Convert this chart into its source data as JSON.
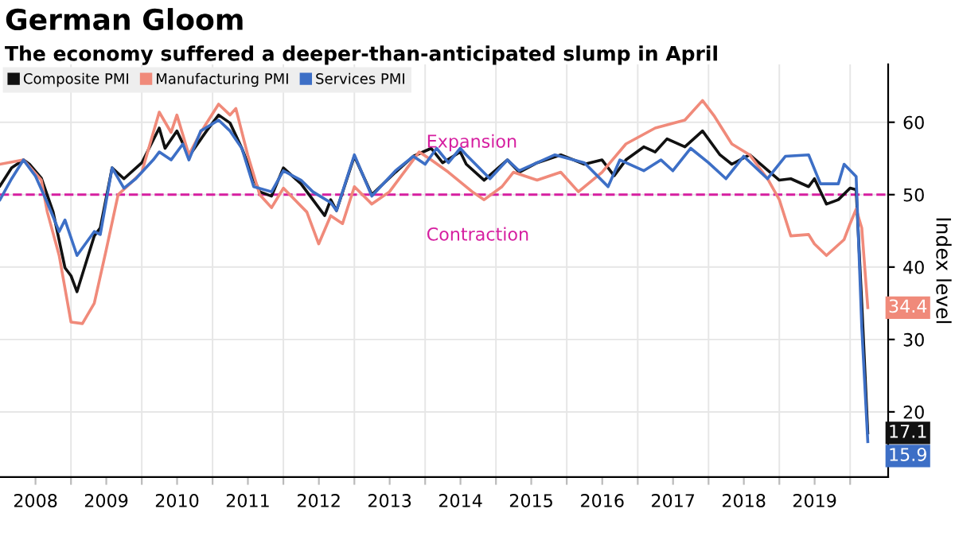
{
  "chart_data": {
    "type": "line",
    "title": "German Gloom",
    "subtitle": "The economy suffered a deeper-than-anticipated slump in April",
    "ylabel": "Index level",
    "series": [
      {
        "name": "Composite PMI",
        "color": "#111111",
        "x": [
          "2008-01",
          "2008-03",
          "2008-05",
          "2008-06",
          "2008-08",
          "2008-10",
          "2008-12",
          "2009-01",
          "2009-02",
          "2009-05",
          "2009-06",
          "2009-08",
          "2009-10",
          "2010-01",
          "2010-04",
          "2010-05",
          "2010-07",
          "2010-09",
          "2010-12",
          "2011-02",
          "2011-04",
          "2011-06",
          "2011-08",
          "2011-09",
          "2011-11",
          "2012-01",
          "2012-04",
          "2012-06",
          "2012-08",
          "2012-09",
          "2012-10",
          "2013-01",
          "2013-04",
          "2013-08",
          "2013-11",
          "2014-02",
          "2014-04",
          "2014-07",
          "2014-08",
          "2014-11",
          "2015-03",
          "2015-05",
          "2015-08",
          "2015-12",
          "2016-04",
          "2016-07",
          "2016-09",
          "2016-11",
          "2017-02",
          "2017-04",
          "2017-06",
          "2017-09",
          "2017-12",
          "2018-03",
          "2018-05",
          "2018-08",
          "2019-01",
          "2019-03",
          "2019-06",
          "2019-07",
          "2019-09",
          "2019-11",
          "2020-01",
          "2020-02",
          "2020-03",
          "2020-04"
        ],
        "values": [
          51.2,
          53.7,
          54.8,
          54.2,
          52.3,
          47.6,
          39.9,
          38.8,
          36.6,
          44.3,
          45.4,
          53.7,
          52.2,
          54.4,
          59.2,
          56.4,
          58.8,
          55.3,
          58.8,
          61.0,
          59.9,
          56.4,
          52.2,
          50.4,
          49.8,
          53.7,
          51.5,
          49.3,
          47.1,
          49.3,
          47.8,
          55.3,
          50.0,
          53.1,
          55.3,
          56.4,
          54.4,
          55.9,
          54.2,
          52.0,
          54.8,
          53.1,
          54.4,
          55.5,
          54.2,
          54.8,
          52.6,
          54.8,
          56.6,
          55.9,
          57.7,
          56.6,
          58.8,
          55.5,
          54.2,
          55.5,
          52.0,
          52.2,
          51.1,
          52.2,
          48.7,
          49.3,
          50.9,
          50.7,
          35.0,
          17.1
        ],
        "value_labels": [
          null,
          null,
          null,
          null,
          null,
          null,
          null,
          null,
          null,
          null,
          null,
          null,
          null,
          null,
          null,
          null,
          null,
          null,
          null,
          null,
          null,
          null,
          null,
          null,
          null,
          null,
          null,
          null,
          null,
          null,
          null,
          null,
          null,
          null,
          null,
          null,
          null,
          null,
          null,
          null,
          null,
          null,
          null,
          null,
          null,
          null,
          null,
          null,
          null,
          null,
          null,
          null,
          null,
          null,
          null,
          null,
          null,
          null,
          null,
          null,
          null,
          null,
          null,
          null,
          null,
          "17.1"
        ]
      },
      {
        "name": "Manufacturing PMI",
        "color": "#f08a7a",
        "x": [
          "2008-01",
          "2008-05",
          "2008-08",
          "2008-09",
          "2008-11",
          "2009-01",
          "2009-03",
          "2009-05",
          "2009-07",
          "2009-09",
          "2009-11",
          "2010-01",
          "2010-04",
          "2010-06",
          "2010-07",
          "2010-09",
          "2010-11",
          "2011-02",
          "2011-04",
          "2011-05",
          "2011-07",
          "2011-09",
          "2011-11",
          "2012-01",
          "2012-05",
          "2012-07",
          "2012-09",
          "2012-11",
          "2013-01",
          "2013-04",
          "2013-07",
          "2013-12",
          "2014-02",
          "2014-05",
          "2014-09",
          "2014-11",
          "2015-02",
          "2015-04",
          "2015-08",
          "2015-12",
          "2016-03",
          "2016-07",
          "2016-11",
          "2017-04",
          "2017-09",
          "2017-12",
          "2018-02",
          "2018-05",
          "2018-08",
          "2018-11",
          "2019-01",
          "2019-03",
          "2019-06",
          "2019-07",
          "2019-09",
          "2019-12",
          "2020-01",
          "2020-02",
          "2020-03",
          "2020-04"
        ],
        "values": [
          54.2,
          54.8,
          52.0,
          47.6,
          41.6,
          32.4,
          32.2,
          35.0,
          42.3,
          50.0,
          51.5,
          53.1,
          61.4,
          58.6,
          61.0,
          55.5,
          58.6,
          62.5,
          61.0,
          61.9,
          55.5,
          50.0,
          48.2,
          50.9,
          47.6,
          43.2,
          47.1,
          46.0,
          51.1,
          48.7,
          50.4,
          55.9,
          54.8,
          53.1,
          50.4,
          49.3,
          51.1,
          53.1,
          52.0,
          53.1,
          50.4,
          53.1,
          57.0,
          59.2,
          60.3,
          63.0,
          60.8,
          57.0,
          55.5,
          52.2,
          49.3,
          44.3,
          44.5,
          43.2,
          41.6,
          43.8,
          46.0,
          48.0,
          45.4,
          34.4
        ],
        "value_labels": [
          null,
          null,
          null,
          null,
          null,
          null,
          null,
          null,
          null,
          null,
          null,
          null,
          null,
          null,
          null,
          null,
          null,
          null,
          null,
          null,
          null,
          null,
          null,
          null,
          null,
          null,
          null,
          null,
          null,
          null,
          null,
          null,
          null,
          null,
          null,
          null,
          null,
          null,
          null,
          null,
          null,
          null,
          null,
          null,
          null,
          null,
          null,
          null,
          null,
          null,
          null,
          null,
          null,
          null,
          null,
          null,
          null,
          null,
          null,
          "34.4"
        ]
      },
      {
        "name": "Services PMI",
        "color": "#3d6fc6",
        "x": [
          "2008-01",
          "2008-03",
          "2008-05",
          "2008-07",
          "2008-09",
          "2008-11",
          "2008-12",
          "2009-02",
          "2009-05",
          "2009-06",
          "2009-08",
          "2009-10",
          "2009-12",
          "2010-03",
          "2010-04",
          "2010-06",
          "2010-08",
          "2010-09",
          "2010-11",
          "2011-02",
          "2011-04",
          "2011-06",
          "2011-08",
          "2011-11",
          "2012-01",
          "2012-04",
          "2012-06",
          "2012-09",
          "2012-10",
          "2013-01",
          "2013-04",
          "2013-08",
          "2013-11",
          "2014-01",
          "2014-03",
          "2014-05",
          "2014-07",
          "2014-08",
          "2014-12",
          "2015-03",
          "2015-05",
          "2015-11",
          "2016-04",
          "2016-08",
          "2016-10",
          "2017-02",
          "2017-05",
          "2017-07",
          "2017-10",
          "2018-01",
          "2018-04",
          "2018-07",
          "2018-11",
          "2019-02",
          "2019-06",
          "2019-08",
          "2019-11",
          "2019-12",
          "2020-02",
          "2020-03",
          "2020-04"
        ],
        "values": [
          49.3,
          52.2,
          54.8,
          52.6,
          48.9,
          44.9,
          46.5,
          41.6,
          44.9,
          44.5,
          53.7,
          50.9,
          52.2,
          54.8,
          55.9,
          54.8,
          57.0,
          54.8,
          58.8,
          60.3,
          58.8,
          56.4,
          51.1,
          50.4,
          53.3,
          52.0,
          50.4,
          48.9,
          47.8,
          55.5,
          49.8,
          53.3,
          55.3,
          54.2,
          56.4,
          54.4,
          56.4,
          55.5,
          52.2,
          54.8,
          53.3,
          55.5,
          54.4,
          51.1,
          54.8,
          53.3,
          54.8,
          53.3,
          56.4,
          54.4,
          52.2,
          55.3,
          52.2,
          55.3,
          55.5,
          51.5,
          51.5,
          54.2,
          52.5,
          31.7,
          15.9
        ],
        "value_labels": [
          null,
          null,
          null,
          null,
          null,
          null,
          null,
          null,
          null,
          null,
          null,
          null,
          null,
          null,
          null,
          null,
          null,
          null,
          null,
          null,
          null,
          null,
          null,
          null,
          null,
          null,
          null,
          null,
          null,
          null,
          null,
          null,
          null,
          null,
          null,
          null,
          null,
          null,
          null,
          null,
          null,
          null,
          null,
          null,
          null,
          null,
          null,
          null,
          null,
          null,
          null,
          null,
          null,
          null,
          null,
          null,
          null,
          null,
          null,
          null,
          "15.9"
        ]
      }
    ],
    "xlim": [
      "2008-01-01",
      "2020-07-15"
    ],
    "xticks": [
      {
        "value": "2008-07-02",
        "label": "2008"
      },
      {
        "value": "2009-01-01",
        "label": null
      },
      {
        "value": "2009-07-02",
        "label": "2009"
      },
      {
        "value": "2010-01-01",
        "label": null
      },
      {
        "value": "2010-07-02",
        "label": "2010"
      },
      {
        "value": "2011-01-01",
        "label": null
      },
      {
        "value": "2011-07-02",
        "label": "2011"
      },
      {
        "value": "2012-01-01",
        "label": null
      },
      {
        "value": "2012-07-02",
        "label": "2012"
      },
      {
        "value": "2013-01-01",
        "label": null
      },
      {
        "value": "2013-07-02",
        "label": "2013"
      },
      {
        "value": "2014-01-01",
        "label": null
      },
      {
        "value": "2014-07-02",
        "label": "2014"
      },
      {
        "value": "2015-01-01",
        "label": null
      },
      {
        "value": "2015-07-02",
        "label": "2015"
      },
      {
        "value": "2016-01-01",
        "label": null
      },
      {
        "value": "2016-07-02",
        "label": "2016"
      },
      {
        "value": "2017-01-01",
        "label": null
      },
      {
        "value": "2017-07-02",
        "label": "2017"
      },
      {
        "value": "2018-01-01",
        "label": null
      },
      {
        "value": "2018-07-02",
        "label": "2018"
      },
      {
        "value": "2019-01-01",
        "label": null
      },
      {
        "value": "2019-07-02",
        "label": "2019"
      },
      {
        "value": "2020-01-01",
        "label": null
      }
    ],
    "ylim": [
      11,
      68
    ],
    "yticks": [
      20,
      30,
      40,
      50,
      60
    ],
    "ref_lines": [
      {
        "axis": "y",
        "value": 50,
        "color": "#d61fa0",
        "line_style": "dashed"
      }
    ],
    "annotations": [
      "Expansion",
      "Contraction"
    ],
    "grid": true,
    "legend": "top left",
    "marker": "none",
    "line_style": "solid"
  }
}
